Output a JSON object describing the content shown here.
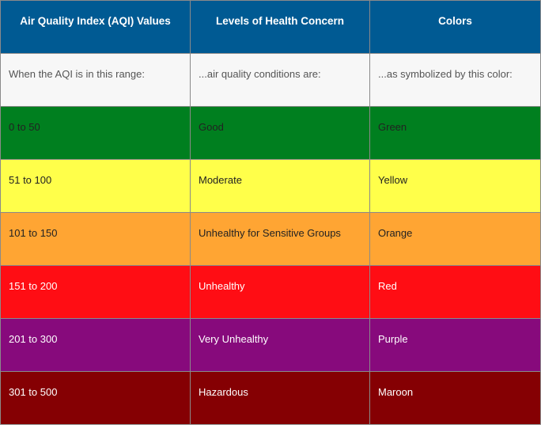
{
  "headers": [
    "Air Quality Index (AQI) Values",
    "Levels of Health Concern",
    "Colors"
  ],
  "subheader": [
    "When the AQI is in this range:",
    "...air quality conditions are:",
    "...as symbolized by this color:"
  ],
  "rows": [
    {
      "range": "0 to 50",
      "level": "Good",
      "color_name": "Green",
      "bg": "#007f1f",
      "tone": "light"
    },
    {
      "range": "51 to 100",
      "level": "Moderate",
      "color_name": "Yellow",
      "bg": "#ffff4a",
      "tone": "light"
    },
    {
      "range": "101 to 150",
      "level": "Unhealthy for Sensitive Groups",
      "color_name": "Orange",
      "bg": "#ffa533",
      "tone": "light"
    },
    {
      "range": "151 to 200",
      "level": "Unhealthy",
      "color_name": "Red",
      "bg": "#ff0d14",
      "tone": "dark"
    },
    {
      "range": "201 to 300",
      "level": "Very Unhealthy",
      "color_name": "Purple",
      "bg": "#870a7c",
      "tone": "dark"
    },
    {
      "range": "301 to 500",
      "level": "Hazardous",
      "color_name": "Maroon",
      "bg": "#850003",
      "tone": "dark"
    }
  ]
}
